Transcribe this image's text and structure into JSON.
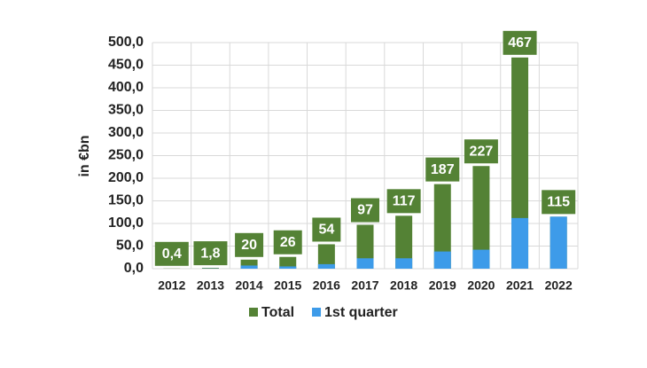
{
  "chart_data": {
    "type": "bar",
    "mode": "overlay",
    "categories": [
      "2012",
      "2013",
      "2014",
      "2015",
      "2016",
      "2017",
      "2018",
      "2019",
      "2020",
      "2021",
      "2022"
    ],
    "series": [
      {
        "name": "Total",
        "color": "#548235",
        "values": [
          0.4,
          1.8,
          20,
          26,
          54,
          97,
          117,
          187,
          227,
          467,
          115
        ],
        "value_labels": [
          "0,4",
          "1,8",
          "20",
          "26",
          "54",
          "97",
          "117",
          "187",
          "227",
          "467",
          "115"
        ]
      },
      {
        "name": "1st quarter",
        "color": "#3d9be9",
        "values": [
          0,
          0.5,
          7,
          5,
          10,
          23,
          23,
          38,
          42,
          112,
          115
        ]
      }
    ],
    "y_label": "in €bn",
    "ylim": [
      0,
      500
    ],
    "yticks": [
      {
        "value": 0,
        "label": "0,0"
      },
      {
        "value": 50,
        "label": "50,0"
      },
      {
        "value": 100,
        "label": "100,0"
      },
      {
        "value": 150,
        "label": "150,0"
      },
      {
        "value": 200,
        "label": "200,0"
      },
      {
        "value": 250,
        "label": "250,0"
      },
      {
        "value": 300,
        "label": "300,0"
      },
      {
        "value": 350,
        "label": "350,0"
      },
      {
        "value": 400,
        "label": "400,0"
      },
      {
        "value": 450,
        "label": "450,0"
      },
      {
        "value": 500,
        "label": "500,0"
      }
    ],
    "grid": true,
    "legend": "bottom"
  }
}
